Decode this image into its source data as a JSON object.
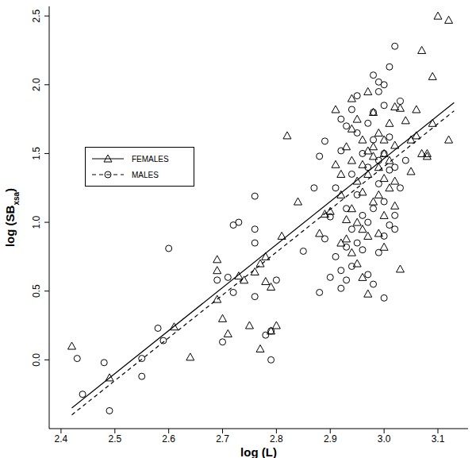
{
  "chart_data": {
    "type": "scatter",
    "x_label": "log (L)",
    "y_label": "log (SBxsa)",
    "y_label_subscript": "xsa",
    "xlim": [
      2.378,
      3.156
    ],
    "ylim": [
      -0.5,
      2.57
    ],
    "xticks": [
      2.4,
      2.5,
      2.6,
      2.7,
      2.8,
      2.9,
      {
        "value": 3,
        "label": "3.0"
      },
      3.1
    ],
    "yticks": [
      {
        "value": 0,
        "label": "0.0"
      },
      0.5,
      {
        "value": 1,
        "label": "1.0"
      },
      1.5,
      {
        "value": 2,
        "label": "2.0"
      },
      2.5
    ],
    "legend": "upper left",
    "series": [
      {
        "name": "FEMALES",
        "color": "#000000",
        "marker": "triangle",
        "line_style": "solid",
        "x": [
          2.42,
          2.49,
          2.61,
          2.64,
          2.69,
          2.69,
          2.69,
          2.7,
          2.71,
          2.73,
          2.74,
          2.75,
          2.76,
          2.77,
          2.77,
          2.78,
          2.78,
          2.79,
          2.79,
          2.8,
          2.81,
          2.82,
          2.84,
          2.88,
          2.89,
          2.9,
          2.91,
          2.91,
          2.92,
          2.92,
          2.92,
          2.93,
          2.93,
          2.93,
          2.94,
          2.94,
          2.94,
          2.94,
          2.94,
          2.95,
          2.95,
          2.95,
          2.95,
          2.96,
          2.96,
          2.96,
          2.96,
          2.96,
          2.97,
          2.97,
          2.97,
          2.97,
          2.97,
          2.98,
          2.98,
          2.98,
          2.98,
          2.99,
          2.99,
          2.99,
          2.99,
          3.0,
          3.0,
          3.0,
          3.0,
          3.0,
          3.01,
          3.01,
          3.01,
          3.02,
          3.02,
          3.02,
          3.03,
          3.02,
          3.05,
          3.05,
          3.06,
          3.06,
          3.07,
          3.07,
          3.08,
          3.08,
          3.09,
          3.09,
          3.1,
          3.12,
          3.12,
          3.04,
          3.03
        ],
        "values": [
          0.1,
          -0.13,
          0.24,
          0.02,
          0.73,
          0.65,
          0.44,
          0.3,
          0.19,
          0.61,
          0.58,
          0.25,
          0.64,
          0.08,
          0.7,
          0.75,
          0.57,
          0.53,
          0.21,
          0.25,
          0.9,
          1.63,
          1.15,
          0.92,
          1.06,
          1.08,
          1.82,
          1.42,
          1.35,
          1.2,
          0.85,
          1.55,
          1.02,
          0.88,
          1.9,
          1.68,
          1.45,
          1.1,
          0.78,
          1.75,
          1.3,
          1.0,
          0.7,
          1.6,
          1.42,
          1.22,
          0.95,
          0.6,
          1.95,
          1.52,
          1.35,
          0.48,
          0.9,
          1.8,
          1.55,
          1.15,
          1.48,
          1.65,
          1.4,
          1.2,
          0.92,
          1.6,
          1.5,
          1.32,
          1.05,
          0.82,
          1.45,
          1.25,
          1.72,
          1.84,
          1.56,
          1.12,
          0.66,
          1.3,
          1.37,
          1.6,
          1.82,
          1.63,
          1.5,
          2.25,
          1.48,
          1.5,
          2.06,
          1.72,
          2.5,
          2.47,
          1.6,
          1.74,
          1.83
        ],
        "fit": {
          "x": [
            2.42,
            3.13
          ],
          "values": [
            -0.35,
            1.87
          ]
        }
      },
      {
        "name": "MALES",
        "color": "#000000",
        "marker": "circle",
        "line_style": "dashed",
        "x": [
          2.43,
          2.44,
          2.48,
          2.49,
          2.55,
          2.55,
          2.58,
          2.59,
          2.6,
          2.69,
          2.7,
          2.71,
          2.72,
          2.72,
          2.73,
          2.76,
          2.76,
          2.76,
          2.76,
          2.78,
          2.79,
          2.79,
          2.8,
          2.85,
          2.87,
          2.88,
          2.88,
          2.89,
          2.89,
          2.9,
          2.9,
          2.91,
          2.91,
          2.92,
          2.92,
          2.92,
          2.92,
          2.93,
          2.93,
          2.93,
          2.93,
          2.94,
          2.94,
          2.94,
          2.94,
          2.95,
          2.95,
          2.95,
          2.95,
          2.96,
          2.96,
          2.96,
          2.97,
          2.97,
          2.97,
          2.97,
          2.98,
          2.98,
          2.98,
          2.98,
          2.98,
          2.99,
          2.99,
          2.99,
          2.99,
          2.99,
          3.0,
          3.0,
          3.0,
          3.0,
          3.0,
          3.0,
          3.01,
          3.01,
          3.01,
          3.01,
          3.02,
          3.02,
          3.02,
          3.02,
          3.03,
          3.03,
          3.04
        ],
        "values": [
          0.01,
          -0.25,
          -0.02,
          -0.37,
          0.01,
          -0.12,
          0.23,
          0.14,
          0.81,
          0.58,
          0.13,
          0.6,
          0.98,
          0.49,
          1.0,
          1.19,
          0.95,
          0.85,
          0.46,
          0.18,
          0.21,
          0.0,
          0.58,
          0.79,
          1.25,
          0.49,
          1.48,
          0.88,
          1.59,
          0.6,
          1.04,
          1.25,
          0.75,
          1.75,
          1.52,
          0.65,
          0.52,
          1.7,
          1.1,
          0.82,
          0.58,
          1.82,
          1.35,
          0.95,
          0.68,
          1.92,
          1.65,
          1.2,
          0.85,
          1.5,
          1.05,
          0.8,
          1.72,
          1.4,
          1.0,
          0.62,
          2.07,
          1.8,
          1.6,
          1.1,
          0.55,
          2.02,
          1.95,
          1.45,
          1.28,
          0.78,
          2.0,
          1.85,
          1.5,
          1.15,
          0.9,
          0.45,
          2.13,
          1.62,
          1.38,
          0.98,
          2.28,
          1.4,
          1.05,
          0.95,
          1.88,
          1.25,
          1.45
        ],
        "fit": {
          "x": [
            2.42,
            3.13
          ],
          "values": [
            -0.4,
            1.81
          ]
        }
      }
    ]
  }
}
